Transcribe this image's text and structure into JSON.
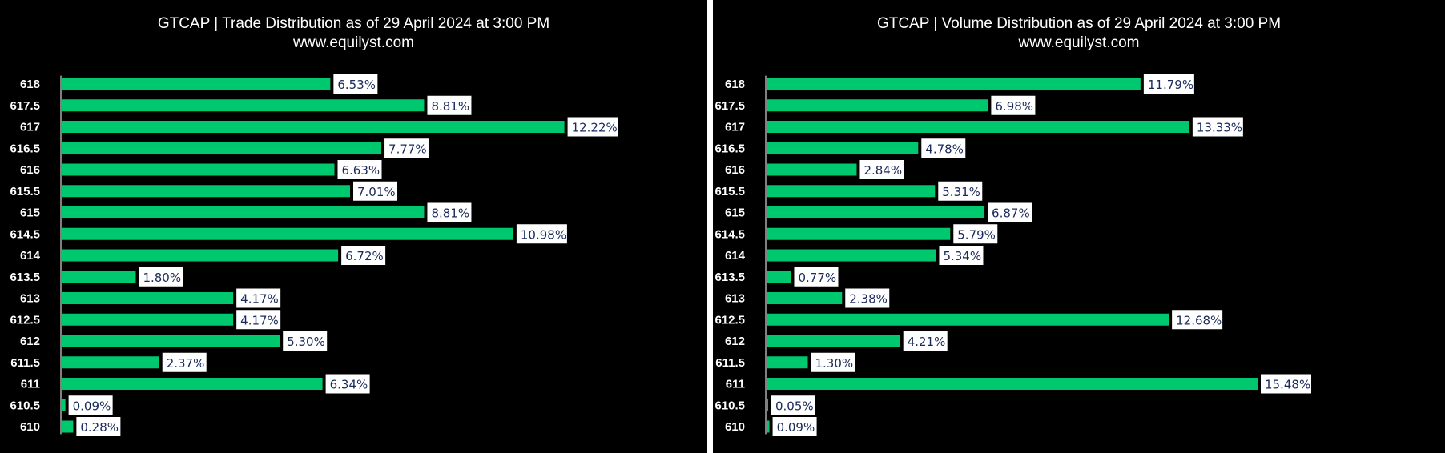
{
  "colors": {
    "bar": "#00c86e",
    "background": "#000000",
    "label_bg": "#ffffff",
    "label_text": "#1a2a5a",
    "axis": "#ffffff"
  },
  "chart_data": [
    {
      "type": "bar",
      "orientation": "horizontal",
      "title": "GTCAP | Trade Distribution as of 29 April 2024 at 3:00 PM",
      "subtitle": "www.equilyst.com",
      "categories": [
        "618",
        "617.5",
        "617",
        "616.5",
        "616",
        "615.5",
        "615",
        "614.5",
        "614",
        "613.5",
        "613",
        "612.5",
        "612",
        "611.5",
        "611",
        "610.5",
        "610"
      ],
      "values": [
        6.53,
        8.81,
        12.22,
        7.77,
        6.63,
        7.01,
        8.81,
        10.98,
        6.72,
        1.8,
        4.17,
        4.17,
        5.3,
        2.37,
        6.34,
        0.09,
        0.28
      ],
      "labels": [
        "6.53%",
        "8.81%",
        "12.22%",
        "7.77%",
        "6.63%",
        "7.01%",
        "8.81%",
        "10.98%",
        "6.72%",
        "1.80%",
        "4.17%",
        "4.17%",
        "5.30%",
        "2.37%",
        "6.34%",
        "0.09%",
        "0.28%"
      ],
      "xlim": [
        0,
        14
      ],
      "grid": false,
      "legend": "none"
    },
    {
      "type": "bar",
      "orientation": "horizontal",
      "title": "GTCAP | Volume Distribution as of 29 April 2024 at 3:00 PM",
      "subtitle": "www.equilyst.com",
      "categories": [
        "618",
        "617.5",
        "617",
        "616.5",
        "616",
        "615.5",
        "615",
        "614.5",
        "614",
        "613.5",
        "613",
        "612.5",
        "612",
        "611.5",
        "611",
        "610.5",
        "610"
      ],
      "values": [
        11.79,
        6.98,
        13.33,
        4.78,
        2.84,
        5.31,
        6.87,
        5.79,
        5.34,
        0.77,
        2.38,
        12.68,
        4.21,
        1.3,
        15.48,
        0.05,
        0.09
      ],
      "labels": [
        "11.79%",
        "6.98%",
        "13.33%",
        "4.78%",
        "2.84%",
        "5.31%",
        "6.87%",
        "5.79%",
        "5.34%",
        "0.77%",
        "2.38%",
        "12.68%",
        "4.21%",
        "1.30%",
        "15.48%",
        "0.05%",
        "0.09%"
      ],
      "xlim": [
        0,
        17
      ],
      "grid": false,
      "legend": "none"
    }
  ]
}
